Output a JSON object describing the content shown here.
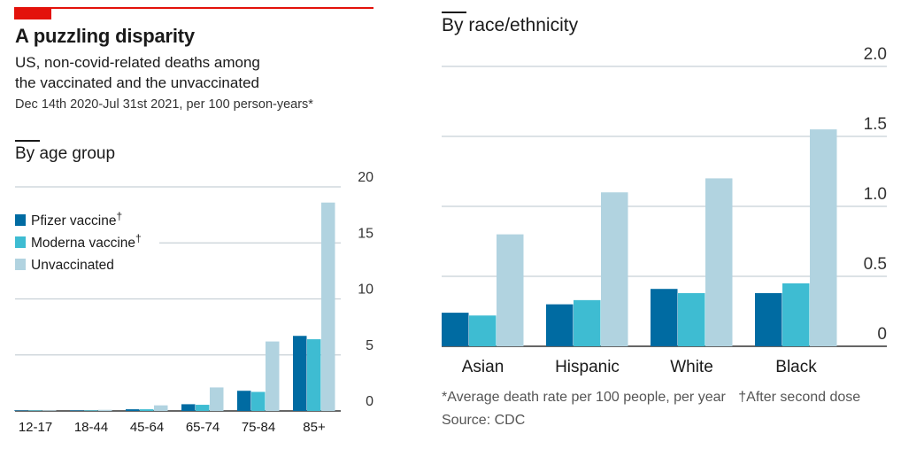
{
  "header": {
    "title": "A puzzling disparity",
    "subtitle_line1": "US, non-covid-related deaths among",
    "subtitle_line2": "the vaccinated and the unvaccinated",
    "subtitle_line3": "Dec 14th 2020-Jul 31st 2021, per 100 person-years*"
  },
  "colors": {
    "pfizer": "#006ba2",
    "moderna": "#3ebcd2",
    "unvaccinated": "#b1d3e0",
    "brand": "#e3120b",
    "grid": "#c8d0d6"
  },
  "legend": {
    "pfizer_label": "Pfizer vaccine",
    "moderna_label": "Moderna vaccine",
    "unvaccinated_label": "Unvaccinated",
    "dagger": "†"
  },
  "chart_data": [
    {
      "type": "bar",
      "title": "By age group",
      "categories": [
        "12-17",
        "18-44",
        "45-64",
        "65-74",
        "75-84",
        "85+"
      ],
      "series": [
        {
          "name": "Pfizer vaccine",
          "values": [
            0.02,
            0.05,
            0.15,
            0.6,
            1.8,
            6.7
          ]
        },
        {
          "name": "Moderna vaccine",
          "values": [
            0.02,
            0.05,
            0.15,
            0.55,
            1.7,
            6.4
          ]
        },
        {
          "name": "Unvaccinated",
          "values": [
            0.03,
            0.1,
            0.5,
            2.1,
            6.2,
            18.6
          ]
        }
      ],
      "ylim": [
        0,
        20
      ],
      "yticks": [
        0,
        5,
        10,
        15,
        20
      ],
      "ytick_labels": [
        "0",
        "5",
        "10",
        "15",
        "20"
      ],
      "grid": true,
      "legend_position": "top-left"
    },
    {
      "type": "bar",
      "title": "By race/ethnicity",
      "categories": [
        "Asian",
        "Hispanic",
        "White",
        "Black"
      ],
      "series": [
        {
          "name": "Pfizer vaccine",
          "values": [
            0.24,
            0.3,
            0.41,
            0.38
          ]
        },
        {
          "name": "Moderna vaccine",
          "values": [
            0.22,
            0.33,
            0.38,
            0.45
          ]
        },
        {
          "name": "Unvaccinated",
          "values": [
            0.8,
            1.1,
            1.2,
            1.55
          ]
        }
      ],
      "ylim": [
        0,
        2.0
      ],
      "yticks": [
        0,
        0.5,
        1.0,
        1.5,
        2.0
      ],
      "ytick_labels": [
        "0",
        "0.5",
        "1.0",
        "1.5",
        "2.0"
      ],
      "grid": true
    }
  ],
  "footer": {
    "footnote_star": "*Average death rate per 100 people, per year",
    "footnote_dagger": "†After second dose",
    "source": "Source: CDC"
  }
}
